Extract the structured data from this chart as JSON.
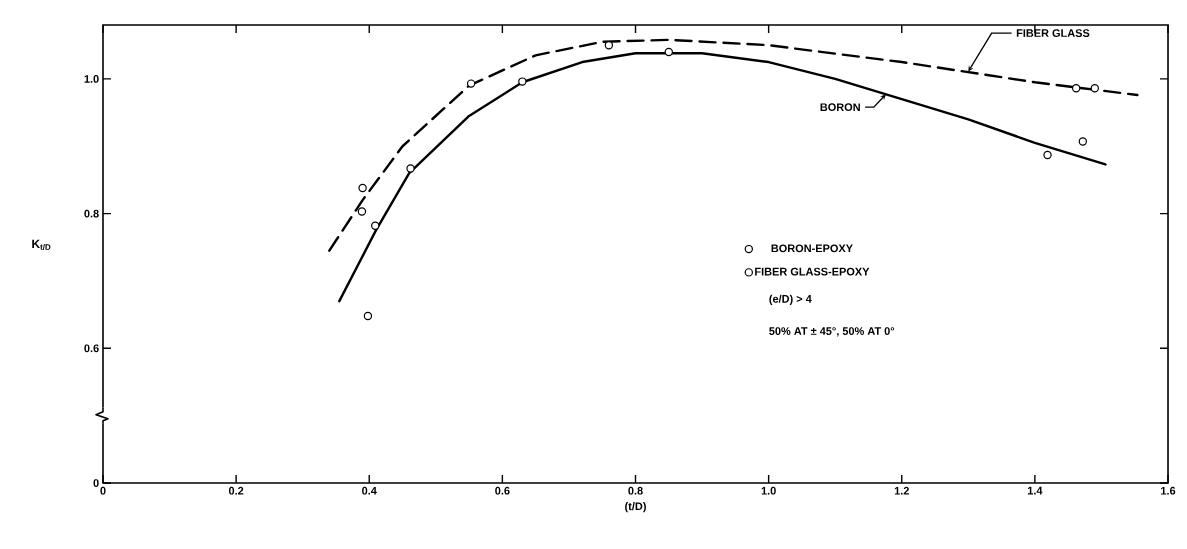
{
  "chart_data": {
    "type": "line",
    "xlabel": "(t/D)",
    "ylabel": "K$_{t/D}$",
    "xlim": [
      0,
      1.6
    ],
    "ylim": [
      0.4,
      1.08
    ],
    "xticks": [
      0,
      0.2,
      0.4,
      0.6,
      0.8,
      {
        "value": 1,
        "label": "1.0"
      },
      1.2,
      1.4,
      1.6
    ],
    "yticks": [
      {
        "value": 0.4,
        "label": "0"
      },
      0.6,
      0.8,
      {
        "value": 1,
        "label": "1.0"
      }
    ],
    "legend": "right",
    "series": [
      {
        "name": "BORON-EPOXY",
        "type": "scatter",
        "marker": "circle",
        "color": "#000000",
        "x": [
          0.398,
          0.409,
          0.462,
          0.63,
          0.85,
          1.419,
          1.472
        ],
        "values": [
          0.648,
          0.782,
          0.867,
          0.996,
          1.04,
          0.887,
          0.907
        ]
      },
      {
        "name": "FIBER GLASS-EPOXY",
        "type": "scatter",
        "marker": "circle",
        "color": "#000000",
        "x": [
          0.389,
          0.39,
          0.553,
          0.76,
          1.462,
          1.49
        ],
        "values": [
          0.803,
          0.838,
          0.993,
          1.05,
          0.986,
          0.986
        ]
      },
      {
        "name": "BORON",
        "type": "line",
        "line_style": "solid",
        "marker": "none",
        "color": "#000000",
        "x": [
          0.355,
          0.41,
          0.46,
          0.55,
          0.63,
          0.72,
          0.8,
          0.9,
          1.0,
          1.1,
          1.2,
          1.3,
          1.4,
          1.506
        ],
        "values": [
          0.67,
          0.775,
          0.86,
          0.945,
          0.995,
          1.025,
          1.038,
          1.038,
          1.025,
          1.0,
          0.97,
          0.94,
          0.905,
          0.873
        ]
      },
      {
        "name": "FIBER GLASS",
        "type": "line",
        "line_style": "dashed",
        "marker": "none",
        "color": "#000000",
        "x": [
          0.34,
          0.39,
          0.45,
          0.55,
          0.65,
          0.75,
          0.85,
          1.0,
          1.2,
          1.4,
          1.554
        ],
        "values": [
          0.745,
          0.82,
          0.9,
          0.99,
          1.035,
          1.055,
          1.058,
          1.05,
          1.025,
          0.995,
          0.976
        ]
      }
    ],
    "annotations": [
      "(e/D) > 4",
      "50% AT ± 45°, 50% AT 0°"
    ]
  }
}
